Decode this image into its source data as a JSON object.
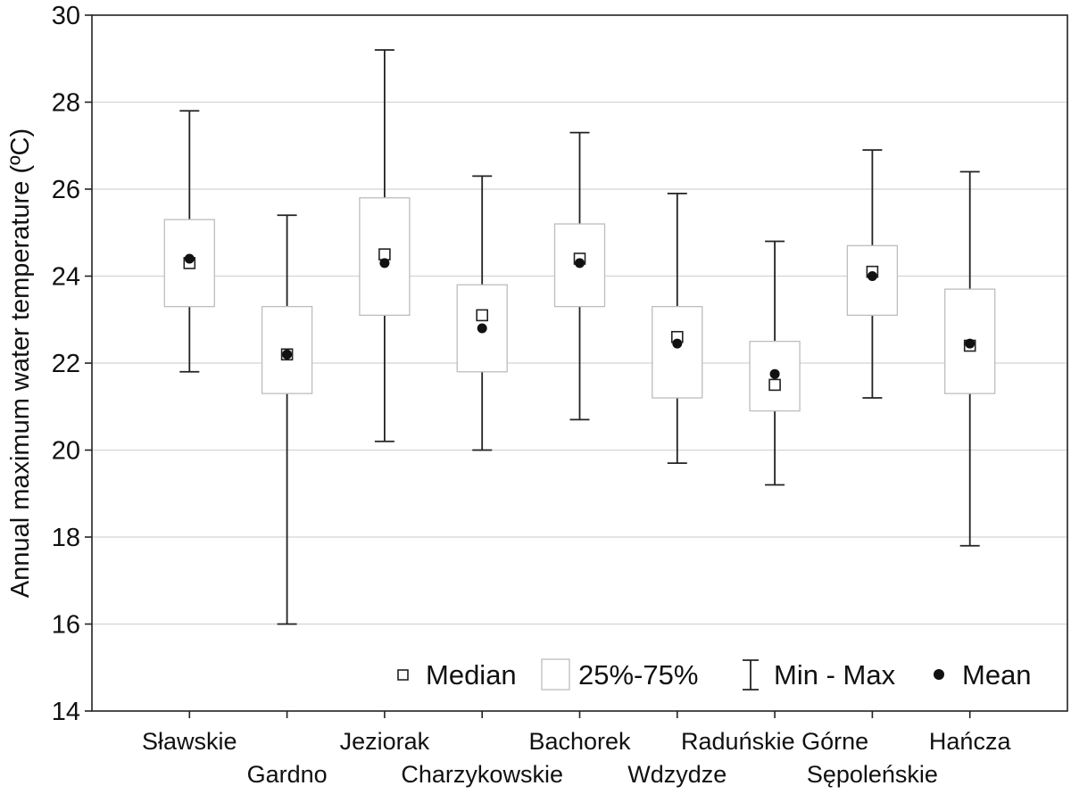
{
  "chart_data": {
    "type": "box",
    "ylabel": "Annual maximum water temperature (ºC)",
    "xlabel": "",
    "title": "",
    "ylim": [
      14,
      30
    ],
    "yticks": [
      14,
      16,
      18,
      20,
      22,
      24,
      26,
      28,
      30
    ],
    "ytick_labels": [
      "14",
      "16",
      "18",
      "20",
      "22",
      "24",
      "26",
      "28",
      "30"
    ],
    "grid": true,
    "legend_position": "bottom-right",
    "legend": {
      "median": "Median",
      "iqr": "25%-75%",
      "minmax": "Min - Max",
      "mean": "Mean"
    },
    "categories": [
      {
        "label": "Sławskie",
        "min": 21.8,
        "q1": 23.3,
        "median": 24.3,
        "q3": 25.3,
        "max": 27.8,
        "mean": 24.4
      },
      {
        "label": "Gardno",
        "min": 16.0,
        "q1": 21.3,
        "median": 22.2,
        "q3": 23.3,
        "max": 25.4,
        "mean": 22.2
      },
      {
        "label": "Jeziorak",
        "min": 20.2,
        "q1": 23.1,
        "median": 24.5,
        "q3": 25.8,
        "max": 29.2,
        "mean": 24.3
      },
      {
        "label": "Charzykowskie",
        "min": 20.0,
        "q1": 21.8,
        "median": 23.1,
        "q3": 23.8,
        "max": 26.3,
        "mean": 22.8
      },
      {
        "label": "Bachorek",
        "min": 20.7,
        "q1": 23.3,
        "median": 24.4,
        "q3": 25.2,
        "max": 27.3,
        "mean": 24.3
      },
      {
        "label": "Wdzydze",
        "min": 19.7,
        "q1": 21.2,
        "median": 22.6,
        "q3": 23.3,
        "max": 25.9,
        "mean": 22.45
      },
      {
        "label": "Raduńskie Górne",
        "min": 19.2,
        "q1": 20.9,
        "median": 21.5,
        "q3": 22.5,
        "max": 24.8,
        "mean": 21.75
      },
      {
        "label": "Sępoleńskie",
        "min": 21.2,
        "q1": 23.1,
        "median": 24.1,
        "q3": 24.7,
        "max": 26.9,
        "mean": 24.0
      },
      {
        "label": "Hańcza",
        "min": 17.8,
        "q1": 21.3,
        "median": 22.4,
        "q3": 23.7,
        "max": 26.4,
        "mean": 22.45
      }
    ]
  }
}
